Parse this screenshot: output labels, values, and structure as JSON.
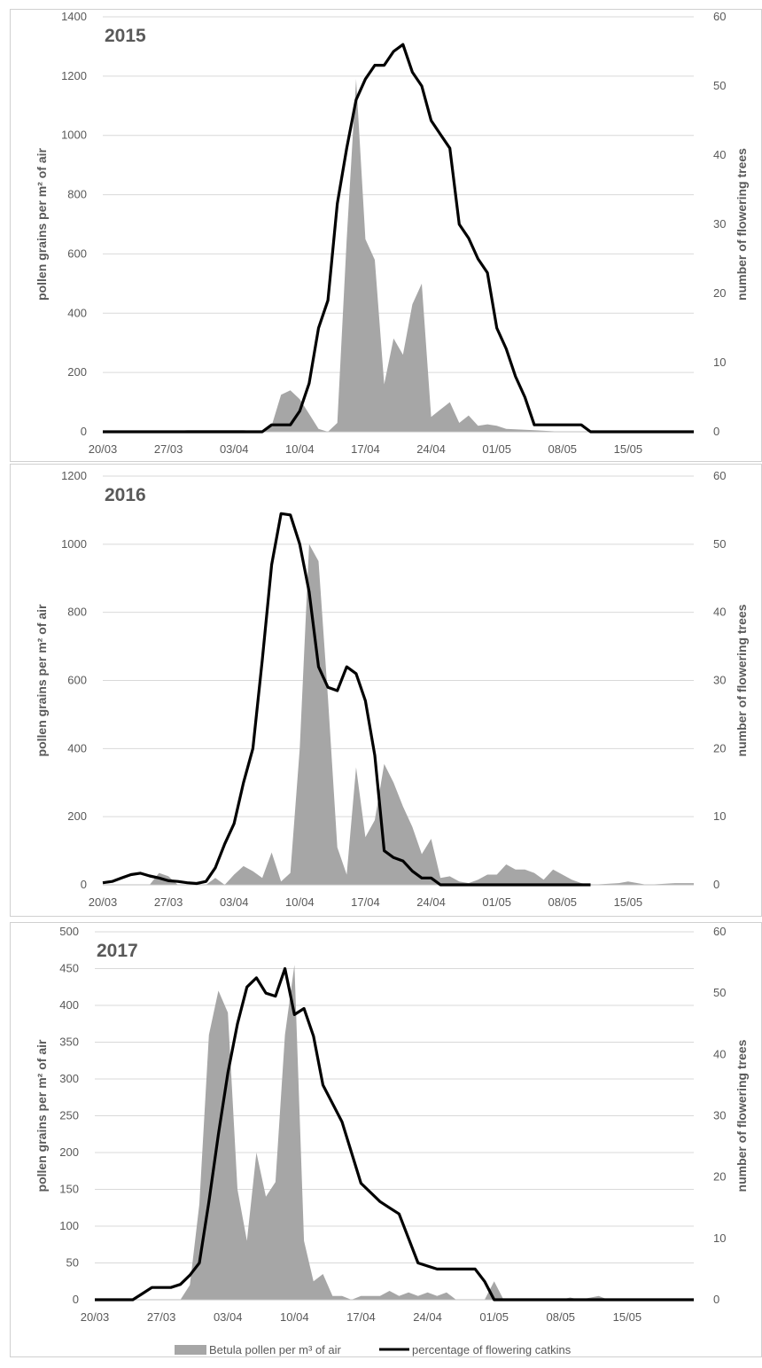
{
  "legend": {
    "area_label": "Betula pollen per m³ of air",
    "line_label": "percentage of flowering catkins"
  },
  "colors": {
    "area": "#a6a6a6",
    "line": "#000000",
    "grid": "#d9d9d9",
    "text": "#595959"
  },
  "chart_data": [
    {
      "type": "area",
      "title": "2015",
      "ylabel": "pollen grains per m² of air",
      "y2label": "number of flowering trees",
      "x_tick_labels": [
        "20/03",
        "27/03",
        "03/04",
        "10/04",
        "17/04",
        "24/04",
        "01/05",
        "08/05",
        "15/05"
      ],
      "xlim": [
        "20/03",
        "22/05"
      ],
      "ylim": [
        0,
        1400
      ],
      "y_ticks": [
        0,
        200,
        400,
        600,
        800,
        1000,
        1200,
        1400
      ],
      "y2lim": [
        0,
        60
      ],
      "y2_ticks": [
        0,
        10,
        20,
        30,
        40,
        50,
        60
      ],
      "grid": true,
      "series": [
        {
          "name": "Betula pollen per m³ of air",
          "axis": "left",
          "points": [
            [
              "20/03",
              0
            ],
            [
              "27/03",
              0
            ],
            [
              "29/03",
              5
            ],
            [
              "04/04",
              5
            ],
            [
              "06/04",
              0
            ],
            [
              "07/04",
              20
            ],
            [
              "08/04",
              125
            ],
            [
              "09/04",
              140
            ],
            [
              "10/04",
              110
            ],
            [
              "11/04",
              60
            ],
            [
              "12/04",
              10
            ],
            [
              "13/04",
              0
            ],
            [
              "14/04",
              30
            ],
            [
              "15/04",
              650
            ],
            [
              "16/04",
              1190
            ],
            [
              "17/04",
              650
            ],
            [
              "18/04",
              580
            ],
            [
              "19/04",
              160
            ],
            [
              "20/04",
              315
            ],
            [
              "21/04",
              260
            ],
            [
              "22/04",
              430
            ],
            [
              "23/04",
              500
            ],
            [
              "24/04",
              50
            ],
            [
              "25/04",
              75
            ],
            [
              "26/04",
              100
            ],
            [
              "27/04",
              30
            ],
            [
              "28/04",
              55
            ],
            [
              "29/04",
              20
            ],
            [
              "30/04",
              25
            ],
            [
              "01/05",
              20
            ],
            [
              "02/05",
              10
            ],
            [
              "05/05",
              5
            ],
            [
              "08/05",
              0
            ],
            [
              "22/05",
              0
            ]
          ]
        },
        {
          "name": "percentage of flowering catkins",
          "axis": "right",
          "points": [
            [
              "20/03",
              0
            ],
            [
              "06/04",
              0
            ],
            [
              "07/04",
              1
            ],
            [
              "09/04",
              1
            ],
            [
              "10/04",
              3
            ],
            [
              "11/04",
              7
            ],
            [
              "12/04",
              15
            ],
            [
              "13/04",
              19
            ],
            [
              "14/04",
              33
            ],
            [
              "15/04",
              41
            ],
            [
              "16/04",
              48
            ],
            [
              "17/04",
              51
            ],
            [
              "18/04",
              53
            ],
            [
              "19/04",
              53
            ],
            [
              "20/04",
              55
            ],
            [
              "21/04",
              56
            ],
            [
              "22/04",
              52
            ],
            [
              "23/04",
              50
            ],
            [
              "24/04",
              45
            ],
            [
              "25/04",
              43
            ],
            [
              "26/04",
              41
            ],
            [
              "27/04",
              30
            ],
            [
              "28/04",
              28
            ],
            [
              "29/04",
              25
            ],
            [
              "30/04",
              23
            ],
            [
              "01/05",
              15
            ],
            [
              "02/05",
              12
            ],
            [
              "03/05",
              8
            ],
            [
              "04/05",
              5
            ],
            [
              "05/05",
              1
            ],
            [
              "10/05",
              1
            ],
            [
              "11/05",
              0
            ],
            [
              "22/05",
              0
            ]
          ]
        }
      ]
    },
    {
      "type": "area",
      "title": "2016",
      "ylabel": "pollen grains per m² of air",
      "y2label": "number of flowering trees",
      "x_tick_labels": [
        "20/03",
        "27/03",
        "03/04",
        "10/04",
        "17/04",
        "24/04",
        "01/05",
        "08/05",
        "15/05"
      ],
      "xlim": [
        "20/03",
        "22/05"
      ],
      "ylim": [
        0,
        1200
      ],
      "y_ticks": [
        0,
        200,
        400,
        600,
        800,
        1000,
        1200
      ],
      "y2lim": [
        0,
        60
      ],
      "y2_ticks": [
        0,
        10,
        20,
        30,
        40,
        50,
        60
      ],
      "grid": true,
      "series": [
        {
          "name": "Betula pollen per m³ of air",
          "axis": "left",
          "points": [
            [
              "20/03",
              0
            ],
            [
              "25/03",
              0
            ],
            [
              "26/03",
              35
            ],
            [
              "27/03",
              25
            ],
            [
              "28/03",
              0
            ],
            [
              "31/03",
              0
            ],
            [
              "01/04",
              20
            ],
            [
              "02/04",
              0
            ],
            [
              "03/04",
              30
            ],
            [
              "04/04",
              55
            ],
            [
              "05/04",
              40
            ],
            [
              "06/04",
              20
            ],
            [
              "07/04",
              95
            ],
            [
              "08/04",
              10
            ],
            [
              "09/04",
              35
            ],
            [
              "10/04",
              400
            ],
            [
              "11/04",
              1000
            ],
            [
              "12/04",
              950
            ],
            [
              "13/04",
              550
            ],
            [
              "14/04",
              110
            ],
            [
              "15/04",
              30
            ],
            [
              "16/04",
              345
            ],
            [
              "17/04",
              140
            ],
            [
              "18/04",
              190
            ],
            [
              "19/04",
              355
            ],
            [
              "20/04",
              300
            ],
            [
              "21/04",
              230
            ],
            [
              "22/04",
              170
            ],
            [
              "23/04",
              90
            ],
            [
              "24/04",
              135
            ],
            [
              "25/04",
              20
            ],
            [
              "26/04",
              25
            ],
            [
              "27/04",
              10
            ],
            [
              "28/04",
              5
            ],
            [
              "29/04",
              15
            ],
            [
              "30/04",
              30
            ],
            [
              "01/05",
              30
            ],
            [
              "02/05",
              60
            ],
            [
              "03/05",
              45
            ],
            [
              "04/05",
              45
            ],
            [
              "05/05",
              35
            ],
            [
              "06/05",
              15
            ],
            [
              "07/05",
              45
            ],
            [
              "08/05",
              30
            ],
            [
              "09/05",
              15
            ],
            [
              "10/05",
              5
            ],
            [
              "11/05",
              0
            ],
            [
              "14/05",
              5
            ],
            [
              "15/05",
              10
            ],
            [
              "16/05",
              5
            ],
            [
              "17/05",
              0
            ],
            [
              "20/05",
              5
            ],
            [
              "22/05",
              5
            ]
          ]
        },
        {
          "name": "percentage of flowering catkins",
          "axis": "right",
          "points": [
            [
              "20/03",
              0.3
            ],
            [
              "21/03",
              0.5
            ],
            [
              "22/03",
              1
            ],
            [
              "23/03",
              1.5
            ],
            [
              "24/03",
              1.7
            ],
            [
              "25/03",
              1.3
            ],
            [
              "26/03",
              1
            ],
            [
              "27/03",
              0.6
            ],
            [
              "28/03",
              0.5
            ],
            [
              "29/03",
              0.3
            ],
            [
              "30/03",
              0.2
            ],
            [
              "31/03",
              0.5
            ],
            [
              "01/04",
              2.5
            ],
            [
              "02/04",
              6
            ],
            [
              "03/04",
              9
            ],
            [
              "04/04",
              15
            ],
            [
              "05/04",
              20
            ],
            [
              "06/04",
              33
            ],
            [
              "07/04",
              47
            ],
            [
              "08/04",
              54.5
            ],
            [
              "09/04",
              54.3
            ],
            [
              "10/04",
              50
            ],
            [
              "11/04",
              43
            ],
            [
              "12/04",
              32
            ],
            [
              "13/04",
              29
            ],
            [
              "14/04",
              28.5
            ],
            [
              "15/04",
              32
            ],
            [
              "16/04",
              31
            ],
            [
              "17/04",
              27
            ],
            [
              "18/04",
              19
            ],
            [
              "19/04",
              5
            ],
            [
              "20/04",
              4
            ],
            [
              "21/04",
              3.5
            ],
            [
              "22/04",
              2
            ],
            [
              "23/04",
              1
            ],
            [
              "24/04",
              1
            ],
            [
              "25/04",
              0
            ],
            [
              "11/05",
              0
            ]
          ]
        }
      ]
    },
    {
      "type": "area",
      "title": "2017",
      "ylabel": "pollen grains per m² of air",
      "y2label": "number of flowering trees",
      "x_tick_labels": [
        "20/03",
        "27/03",
        "03/04",
        "10/04",
        "17/04",
        "24/04",
        "01/05",
        "08/05",
        "15/05"
      ],
      "xlim": [
        "20/03",
        "22/05"
      ],
      "ylim": [
        0,
        500
      ],
      "y_ticks": [
        0,
        50,
        100,
        150,
        200,
        250,
        300,
        350,
        400,
        450,
        500
      ],
      "y2lim": [
        0,
        60
      ],
      "y2_ticks": [
        0,
        10,
        20,
        30,
        40,
        50,
        60
      ],
      "grid": true,
      "series": [
        {
          "name": "Betula pollen per m³ of air",
          "axis": "left",
          "points": [
            [
              "20/03",
              0
            ],
            [
              "29/03",
              0
            ],
            [
              "30/03",
              20
            ],
            [
              "31/03",
              130
            ],
            [
              "01/04",
              360
            ],
            [
              "02/04",
              420
            ],
            [
              "03/04",
              390
            ],
            [
              "04/04",
              150
            ],
            [
              "05/04",
              80
            ],
            [
              "06/04",
              200
            ],
            [
              "07/04",
              140
            ],
            [
              "08/04",
              160
            ],
            [
              "09/04",
              360
            ],
            [
              "10/04",
              455
            ],
            [
              "11/04",
              80
            ],
            [
              "12/04",
              25
            ],
            [
              "13/04",
              35
            ],
            [
              "14/04",
              5
            ],
            [
              "15/04",
              5
            ],
            [
              "16/04",
              0
            ],
            [
              "17/04",
              5
            ],
            [
              "18/04",
              5
            ],
            [
              "19/04",
              5
            ],
            [
              "20/04",
              12
            ],
            [
              "21/04",
              5
            ],
            [
              "22/04",
              10
            ],
            [
              "23/04",
              5
            ],
            [
              "24/04",
              10
            ],
            [
              "25/04",
              5
            ],
            [
              "26/04",
              10
            ],
            [
              "27/04",
              0
            ],
            [
              "30/04",
              0
            ],
            [
              "01/05",
              25
            ],
            [
              "02/05",
              0
            ],
            [
              "08/05",
              0
            ],
            [
              "09/05",
              3
            ],
            [
              "10/05",
              0
            ],
            [
              "12/05",
              5
            ],
            [
              "13/05",
              0
            ],
            [
              "22/05",
              0
            ]
          ]
        },
        {
          "name": "percentage of flowering catkins",
          "axis": "right",
          "points": [
            [
              "20/03",
              0
            ],
            [
              "24/03",
              0
            ],
            [
              "25/03",
              1
            ],
            [
              "26/03",
              2
            ],
            [
              "28/03",
              2
            ],
            [
              "29/03",
              2.5
            ],
            [
              "30/03",
              4
            ],
            [
              "31/03",
              6
            ],
            [
              "01/04",
              16
            ],
            [
              "02/04",
              27
            ],
            [
              "03/04",
              37
            ],
            [
              "04/04",
              45
            ],
            [
              "05/04",
              51
            ],
            [
              "06/04",
              52.5
            ],
            [
              "07/04",
              50
            ],
            [
              "08/04",
              49.5
            ],
            [
              "09/04",
              54
            ],
            [
              "10/04",
              46.5
            ],
            [
              "11/04",
              47.5
            ],
            [
              "12/04",
              43
            ],
            [
              "13/04",
              35
            ],
            [
              "14/04",
              32
            ],
            [
              "15/04",
              29
            ],
            [
              "16/04",
              24
            ],
            [
              "17/04",
              19
            ],
            [
              "18/04",
              17.5
            ],
            [
              "19/04",
              16
            ],
            [
              "20/04",
              15
            ],
            [
              "21/04",
              14
            ],
            [
              "22/04",
              10
            ],
            [
              "23/04",
              6
            ],
            [
              "24/04",
              5.5
            ],
            [
              "25/04",
              5
            ],
            [
              "29/04",
              5
            ],
            [
              "30/04",
              3
            ],
            [
              "01/05",
              0
            ],
            [
              "22/05",
              0
            ]
          ]
        }
      ]
    }
  ]
}
